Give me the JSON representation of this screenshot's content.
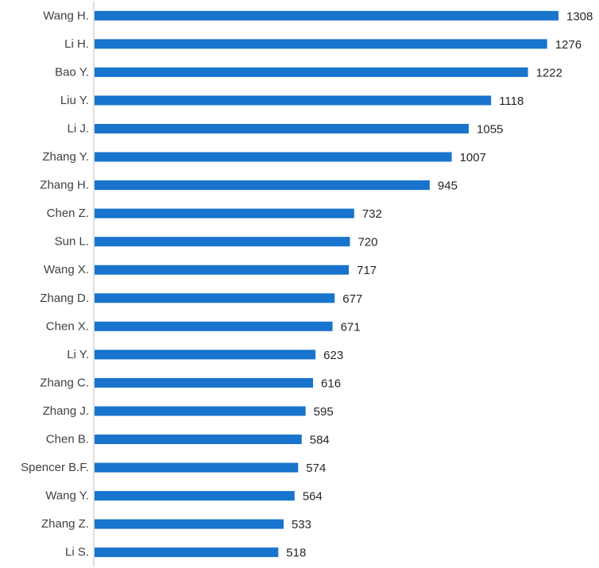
{
  "chart_data": {
    "type": "bar",
    "orientation": "horizontal",
    "categories": [
      "Wang H.",
      "Li H.",
      "Bao Y.",
      "Liu Y.",
      "Li J.",
      "Zhang Y.",
      "Zhang H.",
      "Chen Z.",
      "Sun L.",
      "Wang X.",
      "Zhang D.",
      "Chen X.",
      "Li Y.",
      "Zhang C.",
      "Zhang J.",
      "Chen B.",
      "Spencer B.F.",
      "Wang Y.",
      "Zhang Z.",
      "Li S."
    ],
    "values": [
      1308,
      1276,
      1222,
      1118,
      1055,
      1007,
      945,
      732,
      720,
      717,
      677,
      671,
      623,
      616,
      595,
      584,
      574,
      564,
      533,
      518
    ],
    "xlim": [
      0,
      1308
    ],
    "grid": false,
    "legend": "none",
    "data_labels": true,
    "colors": {
      "bar": "#1874CD",
      "axis": "#BFBFBF"
    }
  }
}
